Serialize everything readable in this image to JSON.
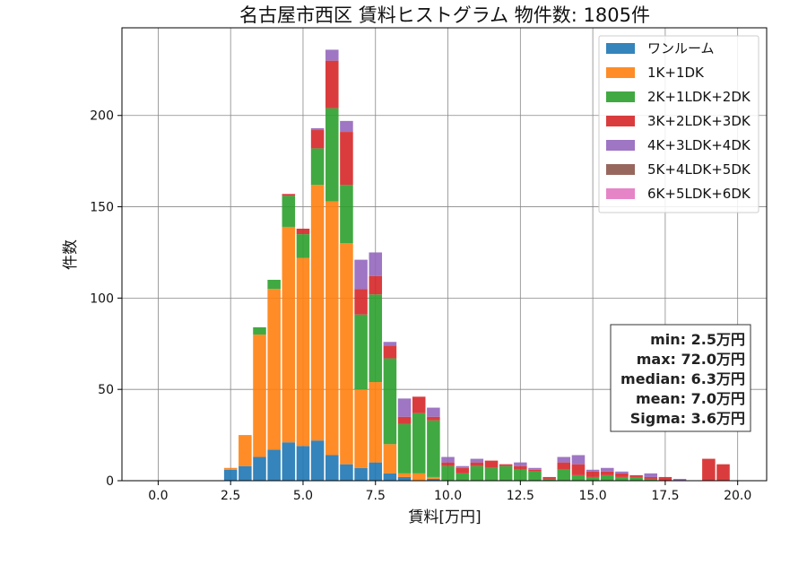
{
  "chart_data": {
    "type": "bar",
    "stacked": true,
    "title": "名古屋市西区 賃料ヒストグラム 物件数: 1805件",
    "xlabel": "賃料[万円]",
    "ylabel": "件数",
    "xlim": [
      -1.25,
      21.0
    ],
    "ylim": [
      0,
      248
    ],
    "bin_width": 0.5,
    "grid": true,
    "legend_position": "top-right",
    "x_ticks": [
      0.0,
      2.5,
      5.0,
      7.5,
      10.0,
      12.5,
      15.0,
      17.5,
      20.0
    ],
    "x_tick_labels": [
      "0.0",
      "2.5",
      "5.0",
      "7.5",
      "10.0",
      "12.5",
      "15.0",
      "17.5",
      "20.0"
    ],
    "y_ticks": [
      0,
      50,
      100,
      150,
      200
    ],
    "y_tick_labels": [
      "0",
      "50",
      "100",
      "150",
      "200"
    ],
    "x": [
      2.5,
      3.0,
      3.5,
      4.0,
      4.5,
      5.0,
      5.5,
      6.0,
      6.5,
      7.0,
      7.5,
      8.0,
      8.5,
      9.0,
      9.5,
      10.0,
      10.5,
      11.0,
      11.5,
      12.0,
      12.5,
      13.0,
      13.5,
      14.0,
      14.5,
      15.0,
      15.5,
      16.0,
      16.5,
      17.0,
      17.5,
      18.0,
      19.0,
      19.5
    ],
    "series": [
      {
        "name": "ワンルーム",
        "color": "#1f77b4",
        "values": [
          6,
          8,
          13,
          17,
          21,
          19,
          22,
          14,
          9,
          7,
          10,
          4,
          2,
          0,
          1,
          0,
          0,
          0,
          0,
          0,
          0,
          0,
          0,
          0,
          0,
          0,
          0,
          0,
          0,
          0,
          0,
          0,
          0,
          0
        ]
      },
      {
        "name": "1K+1DK",
        "color": "#ff7f0e",
        "values": [
          1,
          17,
          67,
          88,
          118,
          103,
          140,
          139,
          121,
          43,
          44,
          16,
          2,
          4,
          1,
          0,
          0,
          0,
          0,
          0,
          0,
          0,
          0,
          0,
          0,
          0,
          0,
          0,
          0,
          0,
          0,
          0,
          0,
          0
        ]
      },
      {
        "name": "2K+1LDK+2DK",
        "color": "#2ca02c",
        "values": [
          0,
          0,
          4,
          5,
          17,
          13,
          20,
          51,
          32,
          41,
          48,
          47,
          27,
          33,
          31,
          8,
          4,
          8,
          7,
          8,
          6,
          5,
          1,
          6,
          3,
          2,
          3,
          2,
          2,
          1,
          0,
          0,
          0,
          0
        ]
      },
      {
        "name": "3K+2LDK+3DK",
        "color": "#d62728",
        "values": [
          0,
          0,
          0,
          0,
          1,
          3,
          10,
          26,
          29,
          14,
          10,
          7,
          4,
          9,
          2,
          2,
          3,
          2,
          4,
          1,
          2,
          1,
          1,
          4,
          6,
          3,
          2,
          2,
          1,
          1,
          2,
          0,
          12,
          9
        ]
      },
      {
        "name": "4K+3LDK+4DK",
        "color": "#9467bd",
        "values": [
          0,
          0,
          0,
          0,
          0,
          0,
          1,
          6,
          6,
          16,
          13,
          2,
          10,
          0,
          5,
          3,
          1,
          2,
          0,
          0,
          2,
          1,
          0,
          3,
          5,
          1,
          2,
          1,
          0,
          2,
          0,
          1,
          0,
          0
        ]
      },
      {
        "name": "5K+4LDK+5DK",
        "color": "#8c564b",
        "values": [
          0,
          0,
          0,
          0,
          0,
          0,
          0,
          0,
          0,
          0,
          0,
          0,
          0,
          0,
          0,
          0,
          0,
          0,
          0,
          0,
          0,
          0,
          0,
          0,
          0,
          0,
          0,
          0,
          0,
          0,
          0,
          0,
          0,
          0
        ]
      },
      {
        "name": "6K+5LDK+6DK",
        "color": "#e377c2",
        "values": [
          0,
          0,
          0,
          0,
          0,
          0,
          0,
          0,
          0,
          0,
          0,
          0,
          0,
          0,
          0,
          0,
          0,
          0,
          0,
          0,
          0,
          0,
          0,
          0,
          0,
          0,
          0,
          0,
          0,
          0,
          0,
          0,
          0,
          0
        ]
      }
    ],
    "annotations": [
      {
        "text": "min: 2.5万円"
      },
      {
        "text": "max: 72.0万円"
      },
      {
        "text": "median: 6.3万円"
      },
      {
        "text": "mean: 7.0万円"
      },
      {
        "text": "Sigma: 3.6万円"
      }
    ]
  }
}
